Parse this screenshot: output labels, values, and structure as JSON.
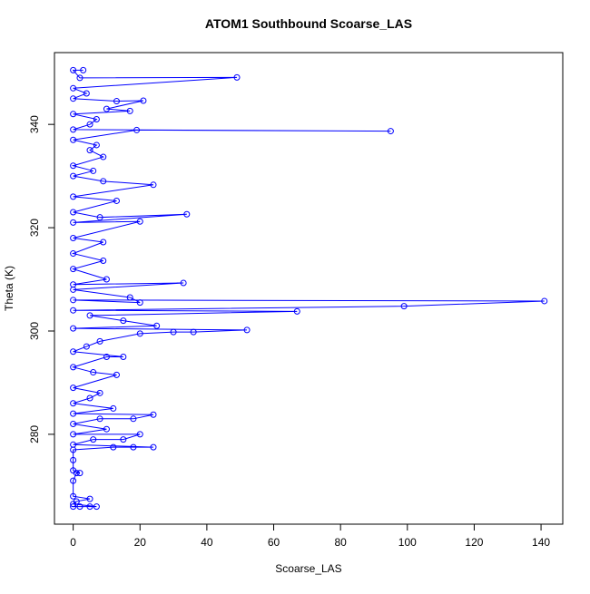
{
  "chart_data": {
    "type": "line",
    "title": "ATOM1 Southbound Scoarse_LAS",
    "x_label": "Scoarse_LAS",
    "y_label": "Theta (K)",
    "x": [
      0,
      2,
      5,
      7,
      0,
      1,
      5,
      0,
      0,
      1,
      2,
      0,
      0,
      0,
      12,
      18,
      24,
      0,
      6,
      15,
      20,
      0,
      10,
      0,
      8,
      18,
      24,
      0,
      12,
      0,
      5,
      8,
      0,
      13,
      6,
      0,
      10,
      15,
      0,
      4,
      8,
      20,
      30,
      36,
      52,
      0,
      25,
      15,
      5,
      67,
      0,
      99,
      141,
      0,
      20,
      17,
      0,
      33,
      0,
      10,
      0,
      9,
      0,
      9,
      0,
      20,
      0,
      34,
      8,
      0,
      13,
      0,
      24,
      9,
      0,
      6,
      0,
      9,
      5,
      7,
      0,
      19,
      95,
      0,
      5,
      7,
      0,
      17,
      10,
      21,
      13,
      0,
      4,
      0,
      49,
      2,
      0,
      3
    ],
    "series": [
      {
        "name": "Theta",
        "color": "#0000ff",
        "values": [
          266,
          266,
          266,
          266,
          266.5,
          267,
          267.5,
          268,
          271,
          272.5,
          272.5,
          273,
          275,
          277,
          277.5,
          277.5,
          277.5,
          278,
          279,
          279,
          280,
          280,
          281,
          282,
          283,
          283,
          283.8,
          284,
          285,
          286,
          287,
          288,
          289,
          291.5,
          292,
          293,
          295,
          295,
          296,
          297,
          298,
          299.5,
          299.8,
          299.8,
          300.2,
          300.5,
          301,
          302,
          303,
          303.8,
          304,
          304.8,
          305.8,
          306,
          305.5,
          306.5,
          308,
          309.3,
          309,
          310,
          312,
          313.6,
          315,
          317.2,
          318,
          321.2,
          321,
          322.6,
          322,
          323,
          325.2,
          326,
          328.3,
          329,
          330,
          331,
          332,
          333.7,
          335,
          336,
          337,
          338.9,
          338.7,
          339,
          340,
          341,
          342,
          342.6,
          343,
          344.6,
          344.5,
          345,
          346,
          347,
          349.1,
          349,
          350.5,
          350.5
        ]
      }
    ],
    "xlim": [
      -5.6,
      146.5
    ],
    "ylim": [
      262.6,
      353.9
    ],
    "xticks": [
      0,
      20,
      40,
      60,
      80,
      100,
      120,
      140
    ],
    "yticks": [
      280,
      300,
      320,
      340
    ]
  }
}
